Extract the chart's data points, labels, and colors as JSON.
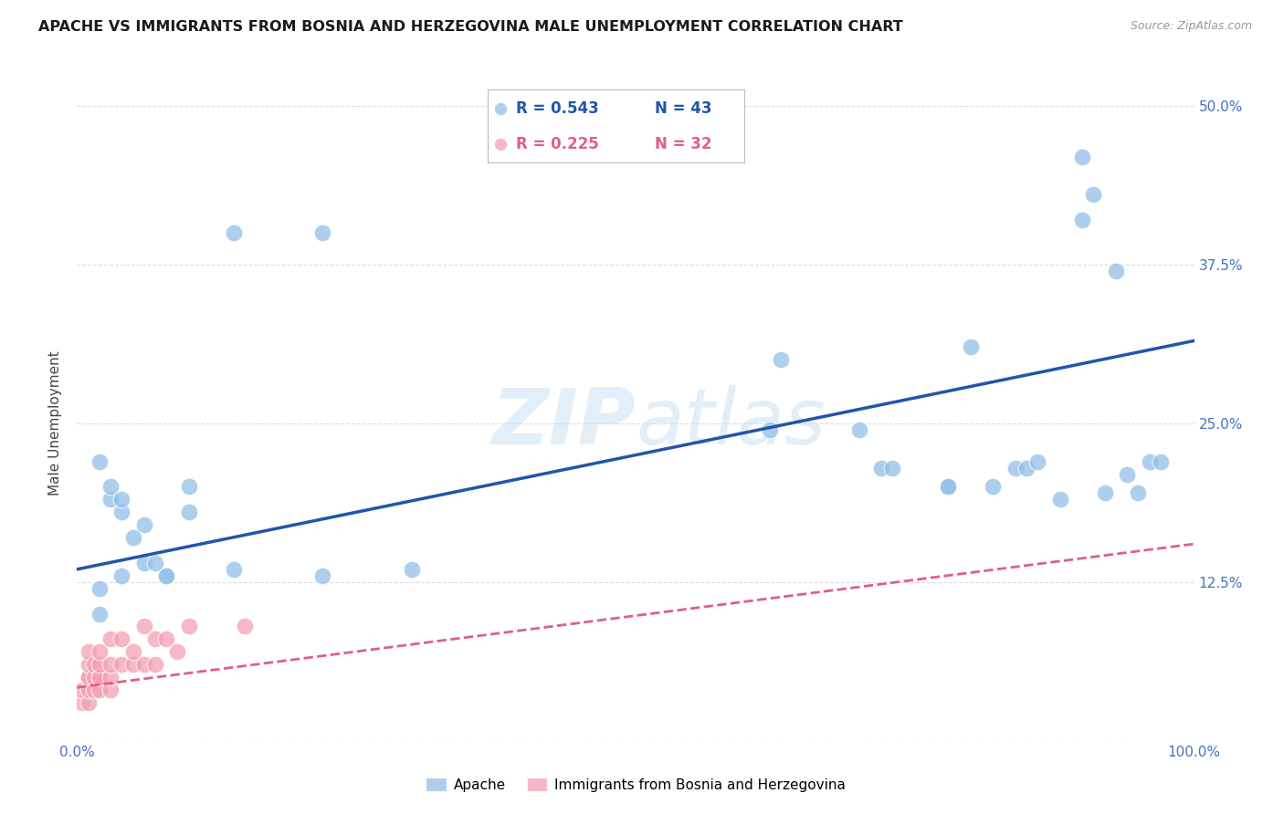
{
  "title": "APACHE VS IMMIGRANTS FROM BOSNIA AND HERZEGOVINA MALE UNEMPLOYMENT CORRELATION CHART",
  "source": "Source: ZipAtlas.com",
  "ylabel": "Male Unemployment",
  "watermark": "ZIPatlas",
  "xlim": [
    0,
    1.0
  ],
  "ylim": [
    0,
    0.5
  ],
  "xticks": [
    0.0,
    0.25,
    0.5,
    0.75,
    1.0
  ],
  "xticklabels": [
    "0.0%",
    "",
    "",
    "",
    "100.0%"
  ],
  "yticks": [
    0.0,
    0.125,
    0.25,
    0.375,
    0.5
  ],
  "yticklabels": [
    "",
    "12.5%",
    "25.0%",
    "37.5%",
    "50.0%"
  ],
  "apache_color": "#92C0E8",
  "bosnia_color": "#F4A0B5",
  "apache_line_color": "#2255AA",
  "bosnia_line_color": "#E06080",
  "legend_R_apache": "R = 0.543",
  "legend_N_apache": "N = 43",
  "legend_R_bosnia": "R = 0.225",
  "legend_N_bosnia": "N = 32",
  "apache_x": [
    0.02,
    0.02,
    0.02,
    0.03,
    0.03,
    0.04,
    0.04,
    0.04,
    0.05,
    0.06,
    0.06,
    0.07,
    0.08,
    0.08,
    0.1,
    0.1,
    0.14,
    0.14,
    0.22,
    0.22,
    0.3,
    0.62,
    0.63,
    0.7,
    0.72,
    0.73,
    0.78,
    0.78,
    0.8,
    0.82,
    0.84,
    0.85,
    0.86,
    0.88,
    0.9,
    0.9,
    0.91,
    0.92,
    0.93,
    0.94,
    0.95,
    0.96,
    0.97
  ],
  "apache_y": [
    0.1,
    0.12,
    0.22,
    0.19,
    0.2,
    0.13,
    0.18,
    0.19,
    0.16,
    0.14,
    0.17,
    0.14,
    0.13,
    0.13,
    0.18,
    0.2,
    0.135,
    0.4,
    0.4,
    0.13,
    0.135,
    0.245,
    0.3,
    0.245,
    0.215,
    0.215,
    0.2,
    0.2,
    0.31,
    0.2,
    0.215,
    0.215,
    0.22,
    0.19,
    0.41,
    0.46,
    0.43,
    0.195,
    0.37,
    0.21,
    0.195,
    0.22,
    0.22
  ],
  "bosnia_x": [
    0.005,
    0.005,
    0.01,
    0.01,
    0.01,
    0.01,
    0.01,
    0.01,
    0.015,
    0.015,
    0.015,
    0.02,
    0.02,
    0.02,
    0.02,
    0.02,
    0.03,
    0.03,
    0.03,
    0.03,
    0.04,
    0.04,
    0.05,
    0.05,
    0.06,
    0.06,
    0.07,
    0.07,
    0.08,
    0.09,
    0.1,
    0.15
  ],
  "bosnia_y": [
    0.03,
    0.04,
    0.03,
    0.04,
    0.05,
    0.05,
    0.06,
    0.07,
    0.04,
    0.05,
    0.06,
    0.04,
    0.05,
    0.05,
    0.06,
    0.07,
    0.04,
    0.05,
    0.06,
    0.08,
    0.06,
    0.08,
    0.06,
    0.07,
    0.06,
    0.09,
    0.06,
    0.08,
    0.08,
    0.07,
    0.09,
    0.09
  ],
  "apache_trend_x": [
    0.0,
    1.0
  ],
  "apache_trend_y": [
    0.135,
    0.315
  ],
  "bosnia_trend_x": [
    0.0,
    1.0
  ],
  "bosnia_trend_y": [
    0.042,
    0.155
  ],
  "grid_color": "#DDDDDD",
  "background_color": "#FFFFFF",
  "title_fontsize": 11.5,
  "axis_label_fontsize": 11,
  "tick_fontsize": 11,
  "legend_fontsize": 13,
  "tick_color": "#4472C4"
}
